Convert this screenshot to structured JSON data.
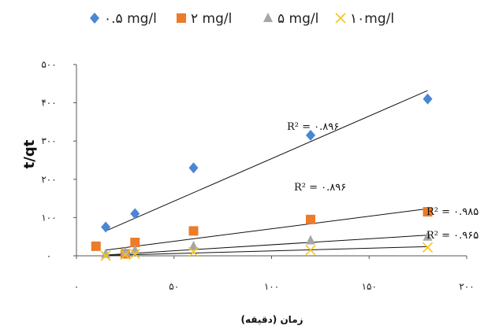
{
  "chart_data": {
    "type": "scatter",
    "xlabel": "زمان (دقیقه)",
    "ylabel": "t/qt",
    "xlim": [
      0,
      200
    ],
    "ylim": [
      0,
      500
    ],
    "x_ticks": [
      {
        "value": 0,
        "label": "۰"
      },
      {
        "value": 50,
        "label": "۵۰"
      },
      {
        "value": 100,
        "label": "۱۰۰"
      },
      {
        "value": 150,
        "label": "۱۵۰"
      },
      {
        "value": 200,
        "label": "۲۰۰"
      }
    ],
    "y_ticks": [
      {
        "value": 0,
        "label": "۰"
      },
      {
        "value": 100,
        "label": "۱۰۰"
      },
      {
        "value": 200,
        "label": "۲۰۰"
      },
      {
        "value": 300,
        "label": "۳۰۰"
      },
      {
        "value": 400,
        "label": "۴۰۰"
      },
      {
        "value": 500,
        "label": "۵۰۰"
      }
    ],
    "legend_position": "top",
    "grid": false,
    "series": [
      {
        "name": "۰.۵ mg/l",
        "marker": "diamond",
        "color": "#4a86d4",
        "x": [
          15,
          30,
          60,
          120,
          180
        ],
        "y": [
          75,
          110,
          230,
          315,
          410
        ],
        "trend": [
          [
            15,
            65
          ],
          [
            180,
            432
          ]
        ],
        "r2_label": "R² = ۰.۸۹۶"
      },
      {
        "name": "۲ mg/l",
        "marker": "square",
        "color": "#ec7b2a",
        "x": [
          10,
          25,
          30,
          60,
          120,
          180
        ],
        "y": [
          25,
          5,
          35,
          65,
          95,
          115
        ],
        "trend": [
          [
            15,
            15
          ],
          [
            180,
            123
          ]
        ],
        "r2_label": "R² = ۰.۸۹۶"
      },
      {
        "name": "۵ mg/l",
        "marker": "triangle",
        "color": "#a6a6a6",
        "x": [
          15,
          25,
          30,
          60,
          120,
          180
        ],
        "y": [
          5,
          10,
          15,
          25,
          40,
          50
        ],
        "trend": [
          [
            15,
            2
          ],
          [
            180,
            54
          ]
        ],
        "r2_label": "R² = ۰.۹۸۵"
      },
      {
        "name": "۱۰mg/l",
        "marker": "cross",
        "color": "#f5c518",
        "x": [
          15,
          25,
          30,
          60,
          120,
          180
        ],
        "y": [
          0,
          3,
          5,
          10,
          15,
          22
        ],
        "trend": [
          [
            15,
            1
          ],
          [
            180,
            24
          ]
        ],
        "r2_label": "R² = ۰.۹۶۵"
      }
    ]
  }
}
